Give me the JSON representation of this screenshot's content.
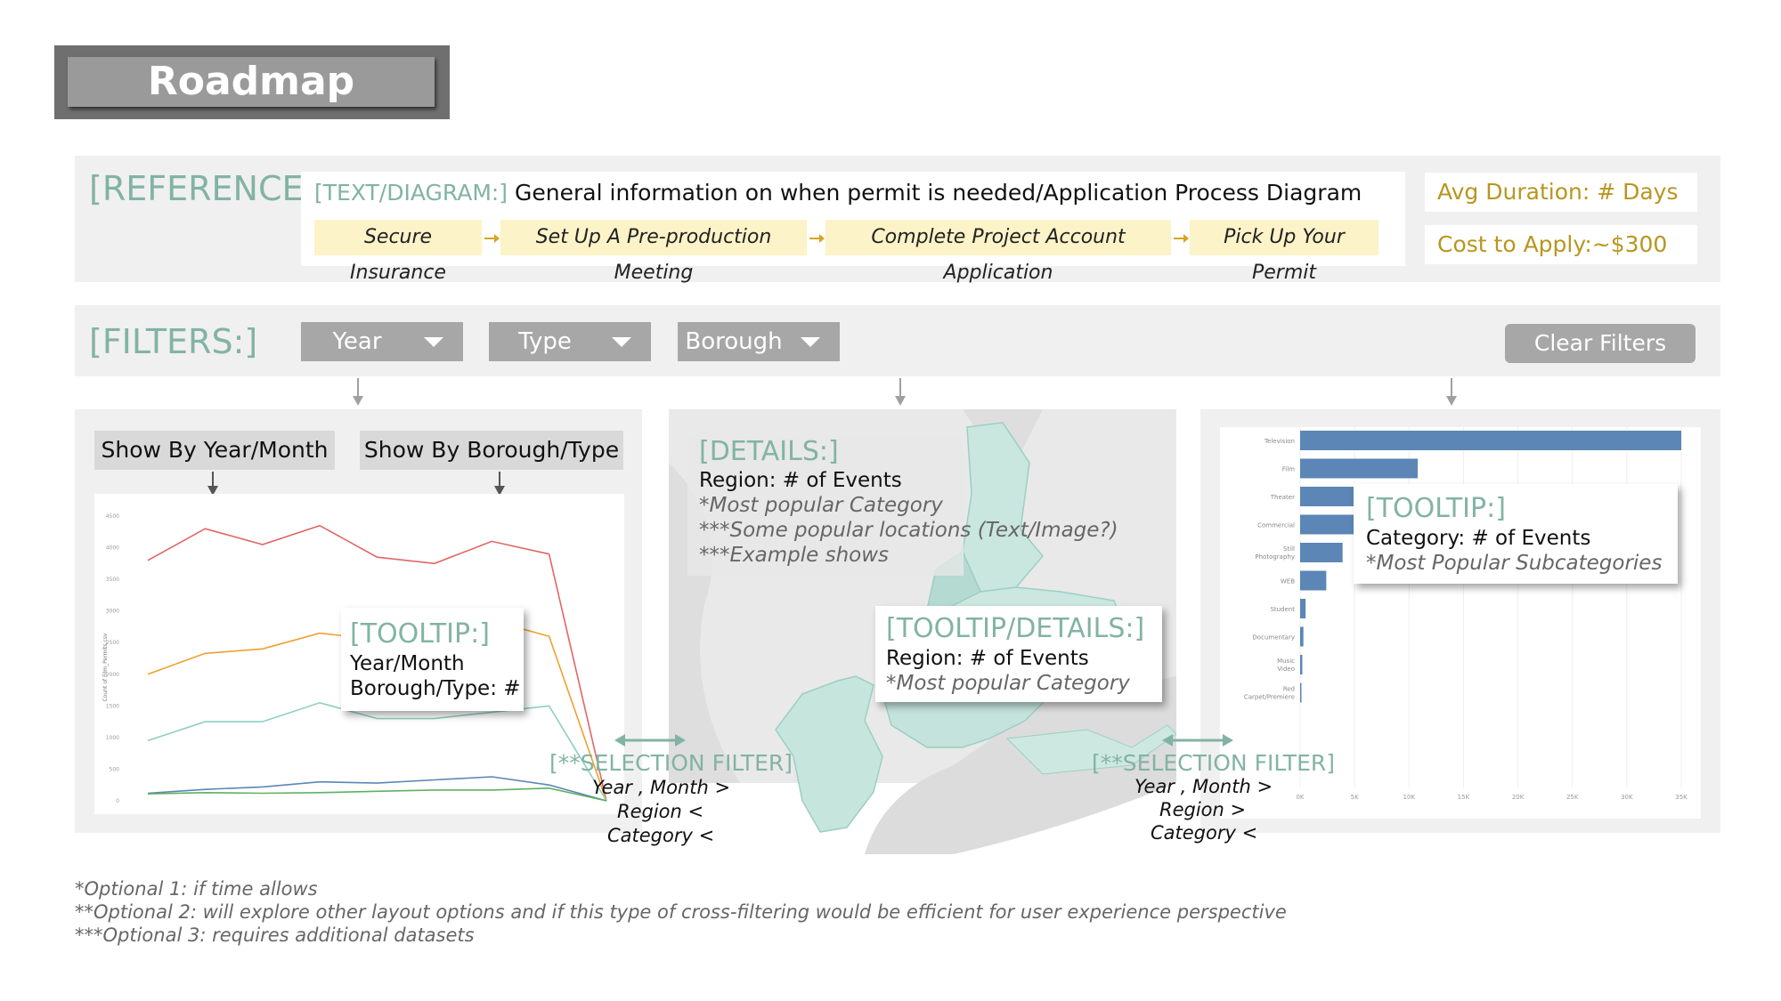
{
  "title": "Roadmap",
  "reference": {
    "label": "[REFERENCE:]",
    "text_diagram_tag": "[TEXT/DIAGRAM:]",
    "text_diagram_desc": "General information on when permit is needed/Application Process Diagram",
    "steps": [
      "Secure Insurance",
      "Set Up A Pre-production Meeting",
      "Complete Project Account Application",
      "Pick Up Your Permit"
    ],
    "avg_duration": "Avg Duration: # Days",
    "cost": "Cost to Apply:~$300"
  },
  "filters": {
    "label": "[FILTERS:]",
    "dropdowns": [
      "Year",
      "Type",
      "Borough"
    ],
    "clear": "Clear Filters"
  },
  "toggles": {
    "year_month": "Show By Year/Month",
    "borough_type": "Show By Borough/Type"
  },
  "tooltip_line": {
    "head": "[TOOLTIP:]",
    "line1": "Year/Month",
    "line2": "Borough/Type: #"
  },
  "details": {
    "head": "[DETAILS:]",
    "line1": "Region: # of Events",
    "line2": "*Most popular Category",
    "line3": "***Some popular locations (Text/Image?)",
    "line4": "***Example shows"
  },
  "tooltip_details": {
    "head": "[TOOLTIP/DETAILS:]",
    "line1": "Region: # of Events",
    "line2": "*Most popular Category"
  },
  "tooltip_bar": {
    "head": "[TOOLTIP:]",
    "line1": "Category: # of Events",
    "line2": "*Most Popular Subcategories"
  },
  "selection_left": {
    "head": "[**SELECTION FILTER]",
    "line1": "Year , Month >",
    "line2": "Region <",
    "line3": "Category <"
  },
  "selection_right": {
    "head": "[**SELECTION FILTER]",
    "line1": "Year , Month >",
    "line2": "Region >",
    "line3": "Category <"
  },
  "footnotes": [
    "*Optional 1: if time allows",
    "**Optional 2: will explore other layout options and if this type of cross-filtering would be efficient for user experience perspective",
    "***Optional 3: requires additional datasets"
  ],
  "colors": {
    "teal": "#82b3a4",
    "gold": "#b8961f",
    "bar_blue": "#5b86b5",
    "step_bg": "#fdf3c8"
  },
  "chart_data": [
    {
      "type": "line",
      "ylabel": "Count of Film_Permits.csv",
      "y_ticks": [
        "4500",
        "4000",
        "3500",
        "3000",
        "2500",
        "2000",
        "1500",
        "1000",
        "500",
        "0"
      ],
      "ylim": [
        0,
        4500
      ],
      "series": [
        {
          "color": "#e06666",
          "values": [
            3800,
            4300,
            4050,
            4350,
            3850,
            3750,
            4100,
            3900,
            0
          ]
        },
        {
          "color": "#f0a030",
          "values": [
            2000,
            2330,
            2400,
            2650,
            2550,
            2750,
            2850,
            2600,
            0
          ]
        },
        {
          "color": "#8fcfc0",
          "values": [
            950,
            1250,
            1250,
            1550,
            1300,
            1300,
            1400,
            1500,
            0
          ]
        },
        {
          "color": "#5b86b5",
          "values": [
            120,
            180,
            220,
            300,
            280,
            330,
            380,
            250,
            0
          ]
        },
        {
          "color": "#5fb05f",
          "values": [
            110,
            130,
            120,
            130,
            150,
            170,
            170,
            200,
            0
          ]
        }
      ]
    },
    {
      "type": "bar",
      "orientation": "horizontal",
      "categories": [
        "Television",
        "Film",
        "Theater",
        "Commercial",
        "Still Photography",
        "WEB",
        "Student",
        "Documentary",
        "Music Video",
        "Red Carpet/Premiere"
      ],
      "values": [
        36500,
        10800,
        6000,
        5200,
        3900,
        2400,
        500,
        300,
        200,
        100
      ],
      "x_ticks": [
        "0K",
        "5K",
        "10K",
        "15K",
        "20K",
        "25K",
        "30K",
        "35K"
      ],
      "xlim": [
        0,
        35000
      ]
    }
  ]
}
